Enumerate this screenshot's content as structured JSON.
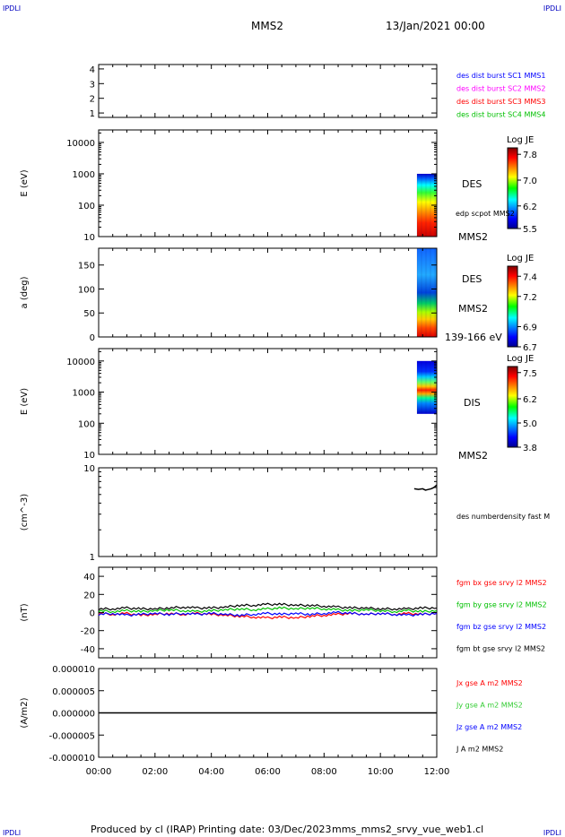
{
  "header": {
    "corner_label": "IPDLI",
    "spacecraft": "MMS2",
    "date": "13/Jan/2021 00:00"
  },
  "footer": {
    "produced_by": "Produced by cl (IRAP)",
    "printing_date": "Printing date: 03/Dec/2023",
    "file_name": "mms_mms2_srvy_vue_web1.cl"
  },
  "colors": {
    "blue": "#0000ff",
    "magenta": "#ff00ff",
    "red": "#ff0000",
    "green": "#00c000",
    "black": "#000000",
    "green_light": "#33cc33"
  },
  "chart_data": [
    {
      "type": "line",
      "panel": "burst",
      "yticks": [
        "1",
        "2",
        "3",
        "4"
      ],
      "ylim": [
        0.7,
        4.3
      ],
      "legend": [
        {
          "text": "des dist burst SC1 MMS1",
          "color": "#0000ff"
        },
        {
          "text": "des dist burst SC2 MMS2",
          "color": "#ff00ff"
        },
        {
          "text": "des dist burst SC3 MMS3",
          "color": "#ff0000"
        },
        {
          "text": "des dist burst SC4 MMS4",
          "color": "#00c000"
        }
      ]
    },
    {
      "type": "heatmap",
      "panel": "des_energy",
      "ylabel": "E (eV)",
      "yscale": "log",
      "ylim": [
        10,
        25000
      ],
      "yticks": [
        "10",
        "100",
        "1000",
        "10000"
      ],
      "side_labels": [
        "DES",
        "edp scpot MMS2",
        "MMS2"
      ],
      "colorbar": {
        "title": "Log JE",
        "ticks": [
          "7.8",
          "7.0",
          "6.2",
          "5.5"
        ],
        "range": [
          5.5,
          8.0
        ]
      },
      "data_window_hours": [
        11.3,
        12.0
      ],
      "energy_range_ev": [
        10,
        1000
      ]
    },
    {
      "type": "heatmap",
      "panel": "des_pitch",
      "ylabel": "a (deg)",
      "ylim": [
        0,
        185
      ],
      "yticks": [
        "0",
        "50",
        "100",
        "150"
      ],
      "side_labels": [
        "DES",
        "MMS2",
        "139-166 eV"
      ],
      "colorbar": {
        "title": "Log JE",
        "ticks": [
          "7.4",
          "7.2",
          "6.9",
          "6.7"
        ],
        "range": [
          6.7,
          7.5
        ]
      },
      "data_window_hours": [
        11.3,
        12.0
      ]
    },
    {
      "type": "heatmap",
      "panel": "dis_energy",
      "ylabel": "E (eV)",
      "yscale": "log",
      "ylim": [
        10,
        25000
      ],
      "yticks": [
        "10",
        "100",
        "1000",
        "10000"
      ],
      "side_labels": [
        "DIS",
        "MMS2"
      ],
      "colorbar": {
        "title": "Log JE",
        "ticks": [
          "7.5",
          "6.2",
          "5.0",
          "3.8"
        ],
        "range": [
          3.8,
          7.8
        ]
      },
      "data_window_hours": [
        11.3,
        12.0
      ],
      "energy_range_ev": [
        200,
        10000
      ]
    },
    {
      "type": "line",
      "panel": "density",
      "ylabel": "(cm^-3)",
      "yscale": "log",
      "ylim": [
        1,
        10
      ],
      "yticks": [
        "1",
        "10"
      ],
      "series": [
        {
          "name": "des numberdensity fast M",
          "color": "#000000",
          "x": [
            11.2,
            11.35,
            11.5,
            11.6,
            11.7,
            11.8,
            11.9,
            12.0
          ],
          "y": [
            5.8,
            5.7,
            5.8,
            5.6,
            5.7,
            5.8,
            6.0,
            6.4
          ]
        }
      ]
    },
    {
      "type": "line",
      "panel": "fgm",
      "ylabel": "(nT)",
      "ylim": [
        -50,
        50
      ],
      "yticks": [
        "-40",
        "-20",
        "0",
        "20",
        "40"
      ],
      "x_hours": [
        0,
        0.5,
        1,
        1.5,
        2,
        2.5,
        3,
        3.5,
        4,
        4.5,
        5,
        5.5,
        6,
        6.5,
        7,
        7.5,
        8,
        8.5,
        9,
        9.5,
        10,
        10.5,
        11,
        11.5,
        12
      ],
      "series": [
        {
          "name": "fgm bx gse srvy l2 MMS2",
          "color": "#ff0000",
          "values": [
            -1,
            -2,
            -1,
            -3,
            -2,
            -1,
            -2,
            -1,
            -2,
            -3,
            -4,
            -5,
            -6,
            -5,
            -6,
            -4,
            -3,
            -2,
            -1,
            -2,
            -1,
            -2,
            -1,
            -2,
            -1
          ]
        },
        {
          "name": "fgm by gse srvy l2 MMS2",
          "color": "#00c000",
          "values": [
            2,
            1,
            2,
            1,
            2,
            3,
            2,
            1,
            2,
            3,
            4,
            3,
            4,
            5,
            4,
            5,
            4,
            3,
            2,
            3,
            2,
            1,
            2,
            1,
            2
          ]
        },
        {
          "name": "fgm bz gse srvy l2 MMS2",
          "color": "#0000ff",
          "values": [
            -2,
            -1,
            -3,
            -2,
            -1,
            -2,
            -1,
            -2,
            -1,
            -2,
            -3,
            -2,
            -1,
            -2,
            -1,
            -2,
            -1,
            0,
            -1,
            -2,
            -1,
            -2,
            -3,
            -2,
            -1
          ]
        },
        {
          "name": "fgm bt gse srvy l2 MMS2",
          "color": "#000000",
          "values": [
            4,
            4,
            5,
            4,
            4,
            5,
            6,
            5,
            5,
            6,
            8,
            8,
            9,
            9,
            8,
            8,
            7,
            6,
            5,
            5,
            4,
            4,
            4,
            5,
            5
          ]
        }
      ]
    },
    {
      "type": "line",
      "panel": "current",
      "ylabel": "(A/m2)",
      "ylim": [
        -1e-05,
        1e-05
      ],
      "yticks": [
        "-0.000010",
        "-0.000005",
        "0.000000",
        "0.000005",
        "0.000010"
      ],
      "series": [
        {
          "name": "Jx gse A m2 MMS2",
          "color": "#ff0000"
        },
        {
          "name": "Jy gse A m2 MMS2",
          "color": "#33cc33"
        },
        {
          "name": "Jz gse A m2 MMS2",
          "color": "#0000ff"
        },
        {
          "name": "J A m2 MMS2",
          "color": "#000000"
        }
      ]
    }
  ],
  "xaxis": {
    "range_hours": [
      0,
      12
    ],
    "tick_labels": [
      "00:00",
      "02:00",
      "04:00",
      "06:00",
      "08:00",
      "10:00",
      "12:00"
    ]
  }
}
